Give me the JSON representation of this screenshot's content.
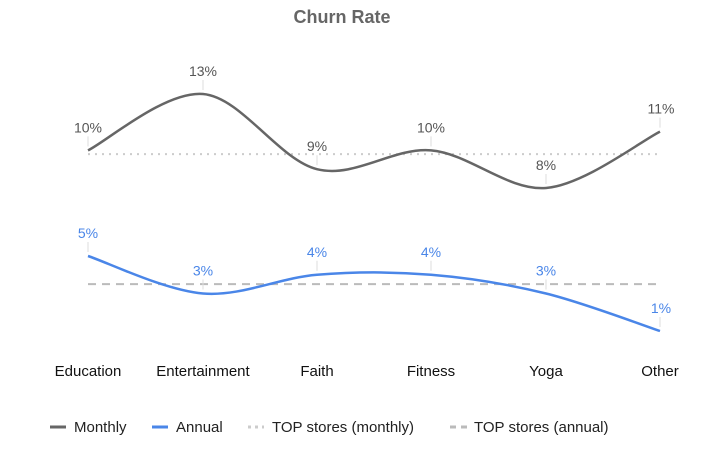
{
  "chart_data": {
    "type": "line",
    "title": "Churn Rate",
    "categories": [
      "Education",
      "Entertainment",
      "Faith",
      "Fitness",
      "Yoga",
      "Other"
    ],
    "series": [
      {
        "name": "Monthly",
        "values": [
          10,
          13,
          9,
          10,
          8,
          11
        ],
        "labels": [
          "10%",
          "13%",
          "9%",
          "10%",
          "8%",
          "11%"
        ],
        "color": "#666666",
        "style": "solid"
      },
      {
        "name": "Annual",
        "values": [
          5,
          3,
          4,
          4,
          3,
          1
        ],
        "labels": [
          "5%",
          "3%",
          "4%",
          "4%",
          "3%",
          "1%"
        ],
        "color": "#4a86e8",
        "style": "solid"
      },
      {
        "name": "TOP stores (monthly)",
        "values": [
          9.8,
          9.8,
          9.8,
          9.8,
          9.8,
          9.8
        ],
        "color": "#cccccc",
        "style": "dotted"
      },
      {
        "name": "TOP stores (annual)",
        "values": [
          3.5,
          3.5,
          3.5,
          3.5,
          3.5,
          3.5
        ],
        "color": "#bbbbbb",
        "style": "dashed"
      }
    ],
    "legend_position": "bottom",
    "grid": false
  }
}
